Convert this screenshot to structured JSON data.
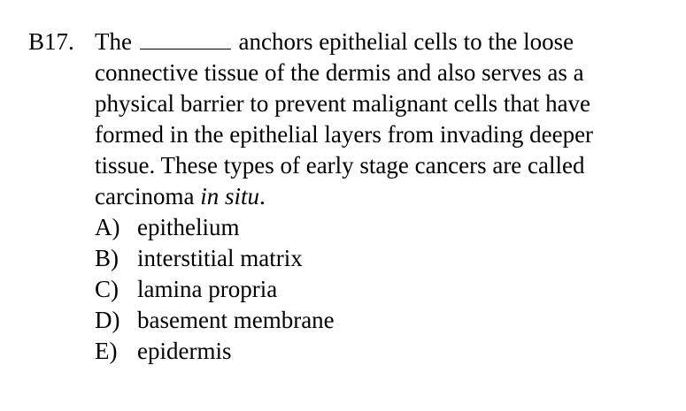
{
  "question": {
    "number": "B17.",
    "lines": [
      {
        "before_blank": "The",
        "after_blank": "anchors epithelial cells to the loose"
      },
      {
        "text": "connective tissue of the dermis and also serves as a"
      },
      {
        "text": "physical barrier to prevent malignant cells that have"
      },
      {
        "text": "formed in the epithelial layers from invading deeper"
      },
      {
        "text": "tissue. These types of early stage cancers are called"
      },
      {
        "text_before": "carcinoma",
        "italic": "in situ",
        "text_after": "."
      }
    ]
  },
  "options": [
    {
      "letter": "A)",
      "text": "epithelium"
    },
    {
      "letter": "B)",
      "text": "interstitial matrix"
    },
    {
      "letter": "C)",
      "text": "lamina propria"
    },
    {
      "letter": "D)",
      "text": "basement membrane"
    },
    {
      "letter": "E)",
      "text": "epidermis"
    }
  ]
}
